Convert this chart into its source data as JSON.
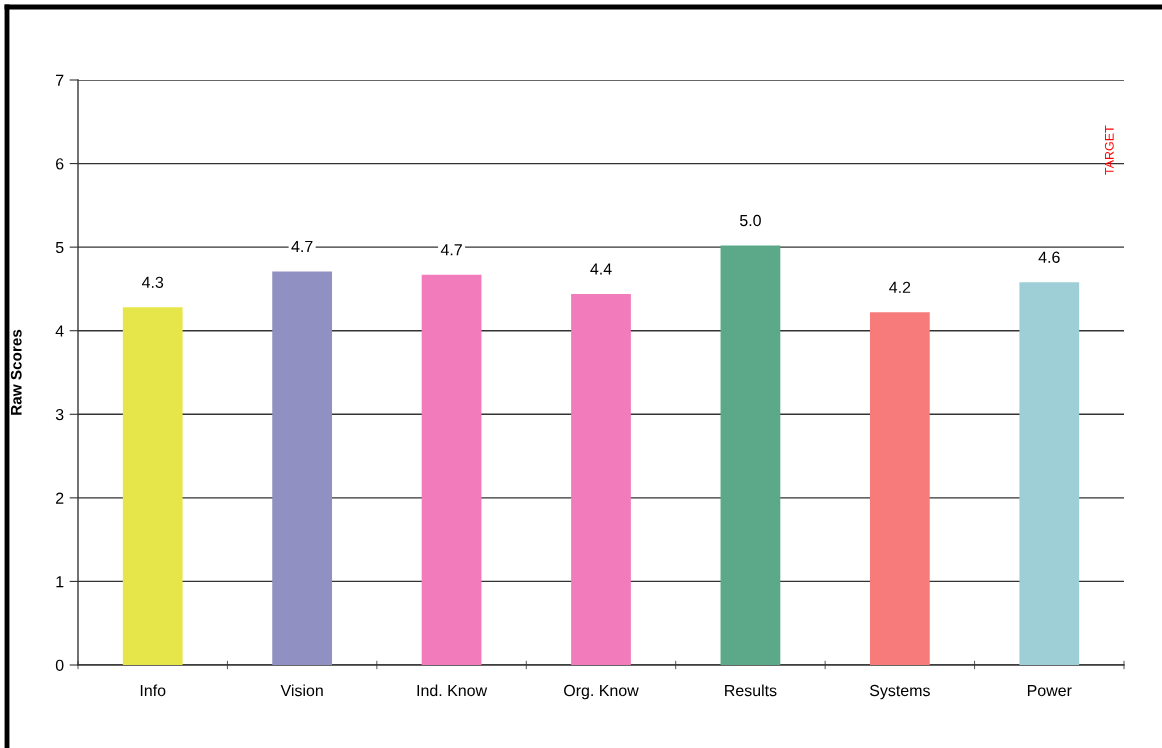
{
  "chart_data": {
    "type": "bar",
    "ylabel": "Raw Scores",
    "categories": [
      "Info",
      "Vision",
      "Ind. Know",
      "Org. Know",
      "Results",
      "Systems",
      "Power"
    ],
    "values": [
      4.28,
      4.71,
      4.67,
      4.44,
      5.02,
      4.22,
      4.58
    ],
    "value_labels": [
      "4.3",
      "4.7",
      "4.7",
      "4.4",
      "5.0",
      "4.2",
      "4.6"
    ],
    "colors": [
      "#e6e64a",
      "#9090c2",
      "#f27cbb",
      "#f27cbb",
      "#5ba988",
      "#f77b7b",
      "#9ecfd6"
    ],
    "ylim": [
      0,
      7
    ],
    "yticks": [
      0,
      1,
      2,
      3,
      4,
      5,
      6,
      7
    ],
    "grid": "y",
    "annotations": [
      "TARGET"
    ]
  }
}
